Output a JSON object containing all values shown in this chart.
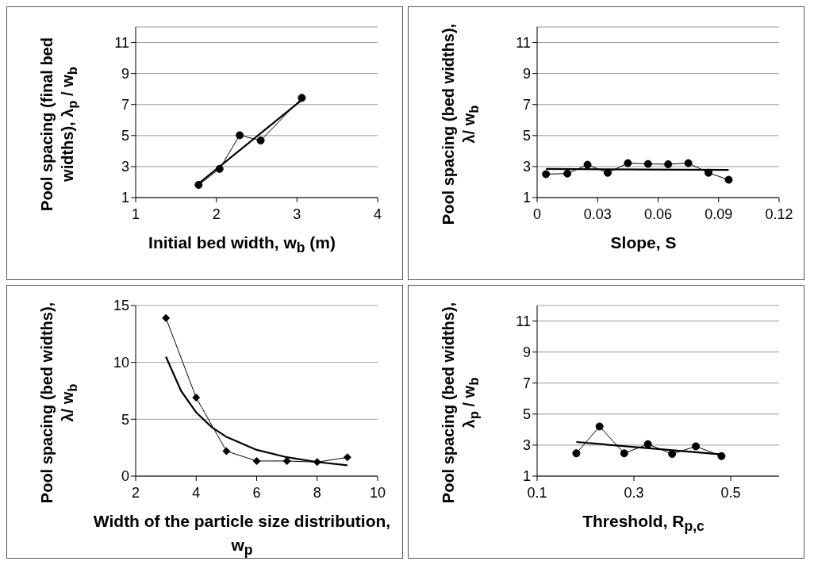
{
  "chart_data": [
    {
      "type": "line",
      "xlabel": "Initial bed width, w$_{b}$ (m)",
      "ylabel": "Pool spacing (final bed widths), λ$_{p}$ / w$_{b}$",
      "xlim": [
        1,
        4
      ],
      "xticks": [
        1,
        2,
        3,
        4
      ],
      "ylim": [
        1,
        12
      ],
      "yticks": [
        1,
        3,
        5,
        7,
        9,
        11
      ],
      "grid": "y",
      "series": [
        {
          "color": "#000000",
          "marker": "circle",
          "x": [
            1.78,
            2.04,
            2.29,
            2.55,
            3.06
          ],
          "values": [
            1.82,
            2.85,
            5.02,
            4.68,
            7.43
          ]
        },
        {
          "color": "#000000",
          "marker": "none",
          "x": [
            1.78,
            3.06
          ],
          "values": [
            1.9,
            7.3
          ]
        }
      ]
    },
    {
      "type": "line",
      "xlabel": "Slope, S",
      "ylabel": "Pool spacing (bed widths), λ/ w$_{b}$",
      "xlim": [
        0,
        0.12
      ],
      "xticks": [
        0,
        0.03,
        0.06,
        0.09,
        0.12
      ],
      "ylim": [
        1,
        12
      ],
      "yticks": [
        1,
        3,
        5,
        7,
        9,
        11
      ],
      "grid": "y",
      "series": [
        {
          "color": "#000000",
          "marker": "circle",
          "x": [
            0.0044,
            0.015,
            0.025,
            0.035,
            0.045,
            0.055,
            0.065,
            0.075,
            0.085,
            0.095
          ],
          "values": [
            2.51,
            2.55,
            3.12,
            2.6,
            3.22,
            3.17,
            3.15,
            3.22,
            2.6,
            2.15
          ]
        },
        {
          "color": "#000000",
          "marker": "none",
          "x": [
            0.0044,
            0.095
          ],
          "values": [
            2.85,
            2.78
          ]
        }
      ]
    },
    {
      "type": "line",
      "xlabel": "Width of the particle size distribution, w$_{p}$",
      "ylabel": "Pool spacing (bed widths), λ/ w$_{b}$",
      "xlim": [
        2,
        10
      ],
      "xticks": [
        2,
        4,
        6,
        8,
        10
      ],
      "ylim": [
        0,
        15
      ],
      "yticks": [
        0,
        5,
        10,
        15
      ],
      "grid": "y",
      "series": [
        {
          "color": "#000000",
          "marker": "diamond",
          "x": [
            3,
            4,
            5,
            6,
            7,
            8,
            9
          ],
          "values": [
            13.9,
            6.9,
            2.2,
            1.33,
            1.33,
            1.23,
            1.65
          ]
        },
        {
          "color": "#000000",
          "marker": "none",
          "x": [
            3,
            3.5,
            4,
            4.5,
            5,
            6,
            7,
            8,
            9
          ],
          "values": [
            10.5,
            7.5,
            5.6,
            4.34,
            3.45,
            2.31,
            1.66,
            1.24,
            0.95
          ]
        }
      ]
    },
    {
      "type": "line",
      "xlabel": "Threshold, R$_{p,c}$",
      "ylabel": "Pool spacing (bed widths), λ$_{p}$ / w$_{b}$",
      "xlim": [
        0.1,
        0.6
      ],
      "xticks": [
        0.1,
        0.3,
        0.5
      ],
      "ylim": [
        1,
        12
      ],
      "yticks": [
        1,
        3,
        5,
        7,
        9,
        11
      ],
      "grid": "y",
      "series": [
        {
          "color": "#000000",
          "marker": "circle",
          "x": [
            0.181,
            0.229,
            0.28,
            0.329,
            0.379,
            0.428,
            0.481
          ],
          "values": [
            2.47,
            4.2,
            2.47,
            3.06,
            2.43,
            2.92,
            2.29
          ]
        },
        {
          "color": "#000000",
          "marker": "none",
          "x": [
            0.181,
            0.481
          ],
          "values": [
            3.2,
            2.4
          ]
        }
      ]
    }
  ]
}
